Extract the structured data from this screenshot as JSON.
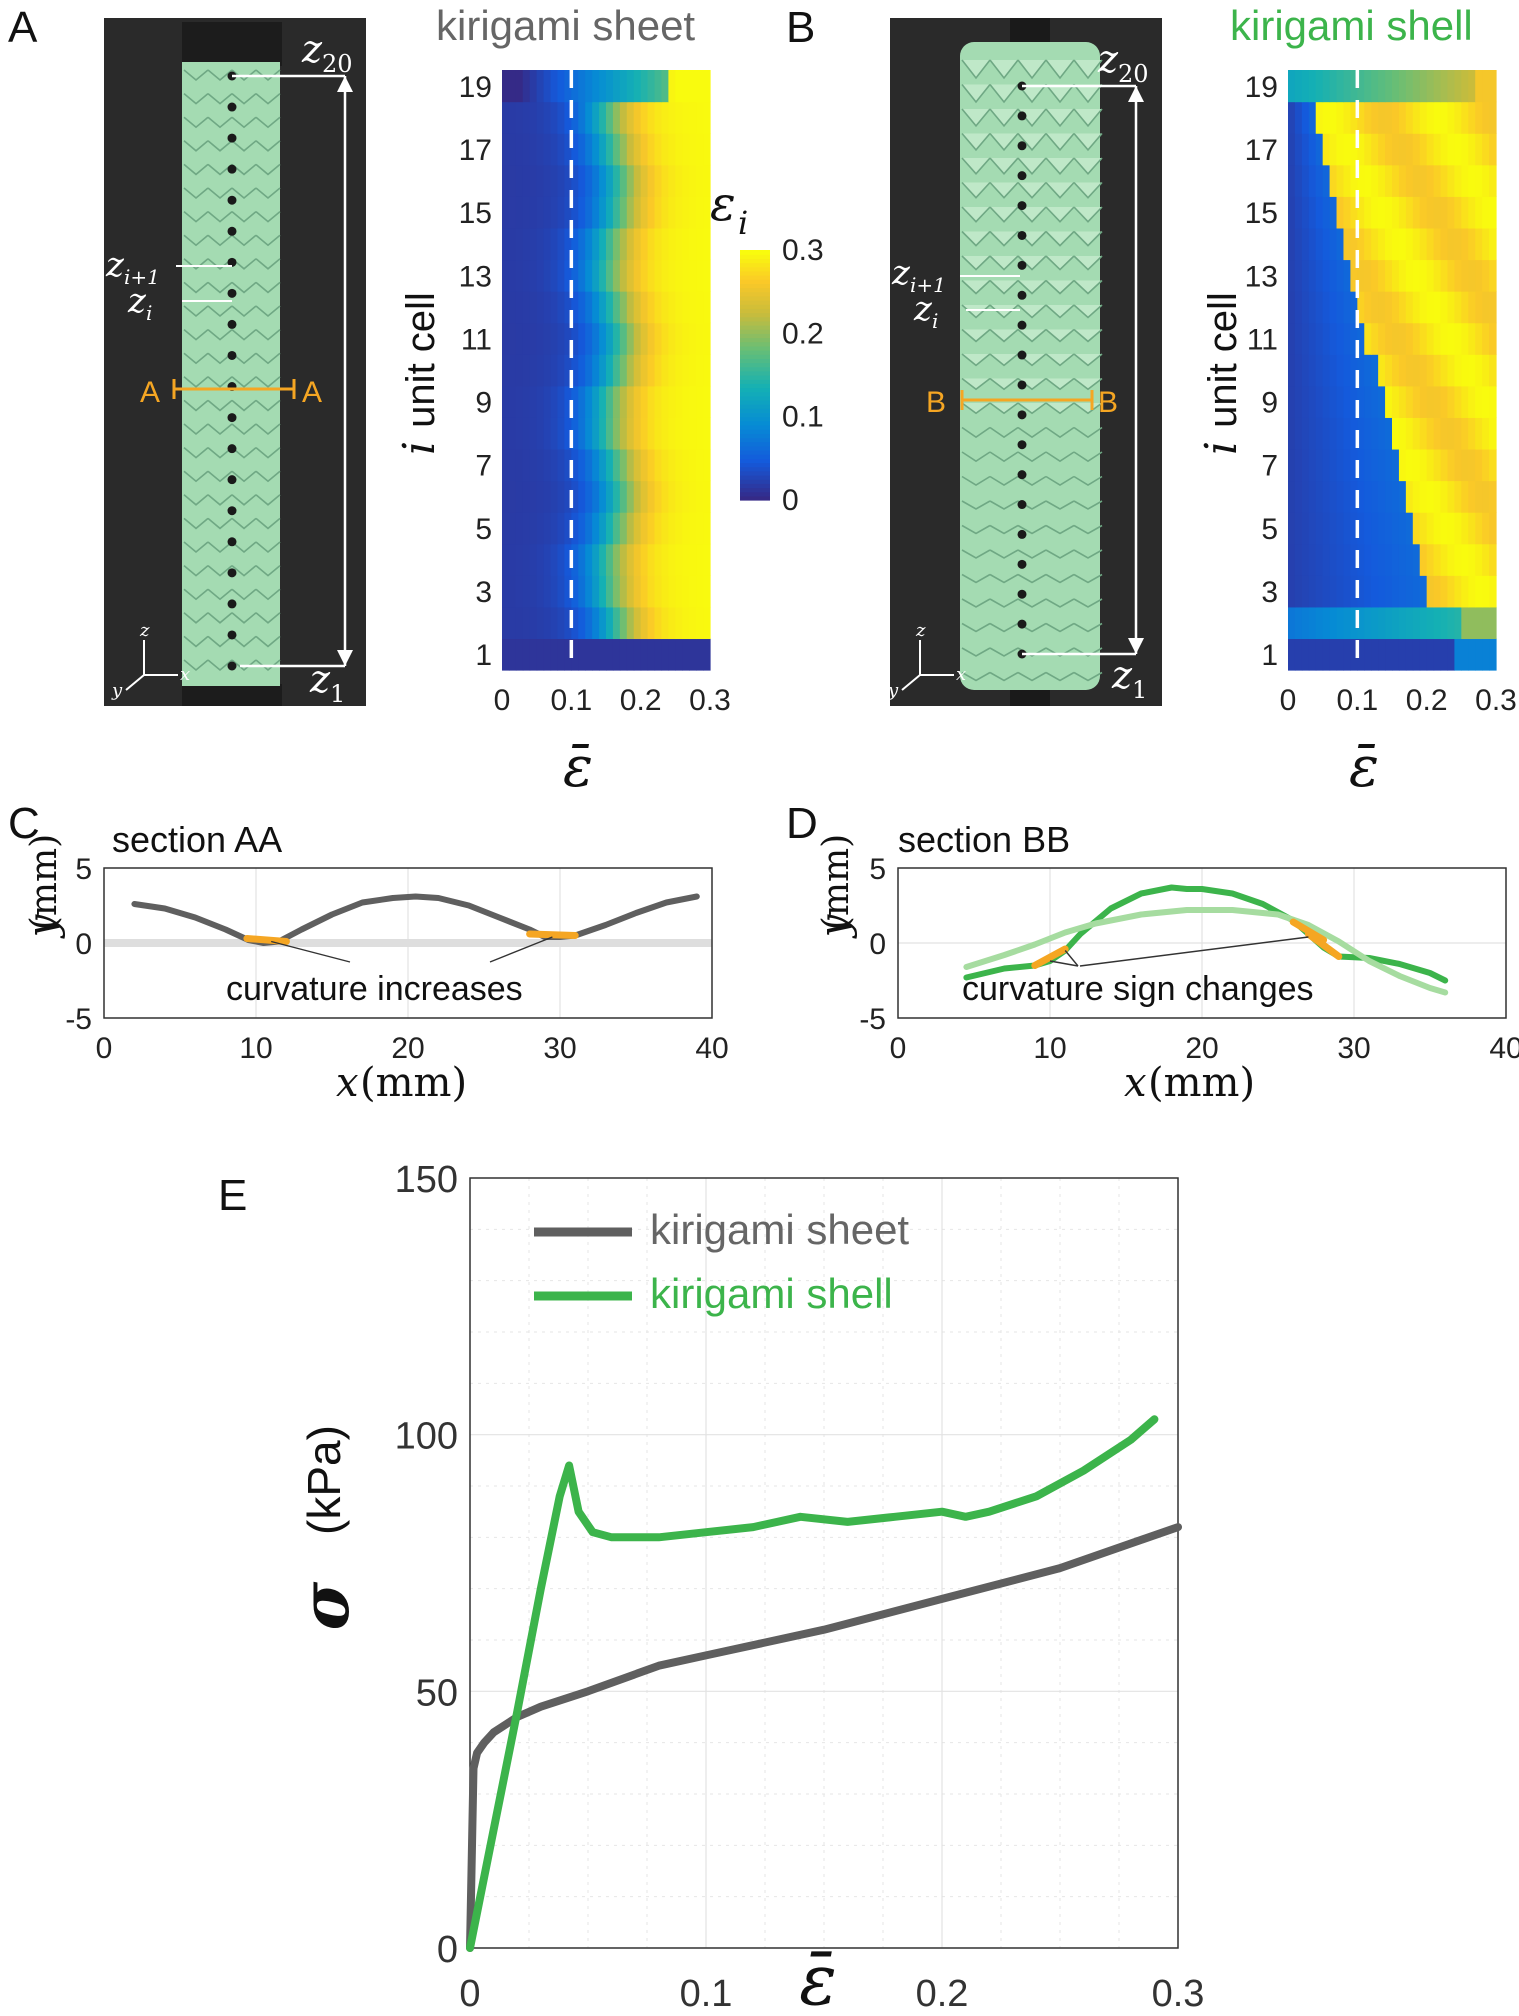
{
  "panels": {
    "A": "A",
    "B": "B",
    "C": "C",
    "D": "D",
    "E": "E"
  },
  "colors": {
    "sheet": "#5f5f5f",
    "shell": "#3cb44b",
    "shell_light": "#a6dca0",
    "highlight": "#f5a623",
    "photo_bg": "#2a2a2a",
    "photo_green": "#a4dbb2"
  },
  "photo_labels": {
    "z20": "z",
    "z20_sub": "20",
    "z1": "z",
    "z1_sub": "1",
    "zi1": "z",
    "zi1_sub": "i+1",
    "zi": "z",
    "zi_sub": "i",
    "sec_a_left": "A",
    "sec_a_right": "A",
    "sec_b_left": "B",
    "sec_b_right": "B",
    "axis_z": "z",
    "axis_x": "x",
    "axis_y": "y"
  },
  "heatmaps": {
    "sheet": {
      "title": "kirigami sheet",
      "ylabel": "unit cell",
      "ylabel_var": "i",
      "xlabel": "ε̄",
      "yticks": [
        "1",
        "3",
        "5",
        "7",
        "9",
        "11",
        "13",
        "15",
        "17",
        "19"
      ],
      "xticks": [
        "0",
        "0.1",
        "0.2",
        "0.3"
      ],
      "dashed_at": 0.1
    },
    "shell": {
      "title": "kirigami shell",
      "ylabel": "unit cell",
      "ylabel_var": "i",
      "xlabel": "ε̄",
      "yticks": [
        "1",
        "3",
        "5",
        "7",
        "9",
        "11",
        "13",
        "15",
        "17",
        "19"
      ],
      "xticks": [
        "0",
        "0.1",
        "0.2",
        "0.3"
      ],
      "dashed_at": 0.1
    },
    "colorbar": {
      "label": "ε",
      "label_sub": "i",
      "ticks": [
        "0",
        "0.1",
        "0.2",
        "0.3"
      ]
    }
  },
  "chart_data": [
    {
      "type": "line",
      "title": "section AA",
      "xlabel": "x",
      "xunit": "(mm)",
      "ylabel": "y",
      "yunit": "(mm)",
      "xlim": [
        0,
        40
      ],
      "ylim": [
        -5,
        5
      ],
      "xticks": [
        "0",
        "10",
        "20",
        "30",
        "40"
      ],
      "yticks": [
        "5",
        "0",
        "-5"
      ],
      "annotation": "curvature increases",
      "series": [
        {
          "x": [
            2,
            4,
            6,
            8,
            9.5,
            10.5,
            11.5,
            13,
            15,
            17,
            19,
            20.5,
            22,
            24,
            26,
            28,
            29,
            30,
            31,
            33,
            35,
            37,
            39
          ],
          "y": [
            2.6,
            2.3,
            1.7,
            0.9,
            0.2,
            0,
            0.1,
            0.9,
            1.9,
            2.7,
            3.0,
            3.1,
            3.0,
            2.5,
            1.7,
            0.9,
            0.4,
            0.4,
            0.5,
            1.2,
            2.0,
            2.7,
            3.1
          ]
        }
      ]
    },
    {
      "type": "line",
      "title": "section BB",
      "xlabel": "x",
      "xunit": "(mm)",
      "ylabel": "y",
      "yunit": "(mm)",
      "xlim": [
        0,
        40
      ],
      "ylim": [
        -5,
        5
      ],
      "xticks": [
        "0",
        "10",
        "20",
        "30",
        "40"
      ],
      "yticks": [
        "5",
        "0",
        "-5"
      ],
      "annotation": "curvature sign changes",
      "series": [
        {
          "x": [
            4.5,
            7,
            9,
            10,
            11,
            12,
            14,
            16,
            18,
            19,
            20,
            22,
            24,
            26,
            27,
            28,
            29,
            31,
            33,
            35,
            36
          ],
          "y": [
            -2.3,
            -1.7,
            -1.5,
            -1.2,
            -0.5,
            0.6,
            2.3,
            3.3,
            3.7,
            3.6,
            3.6,
            3.3,
            2.6,
            1.5,
            0.6,
            -0.3,
            -0.9,
            -1.0,
            -1.4,
            -2.0,
            -2.5
          ]
        },
        {
          "x": [
            4.5,
            7,
            9,
            11,
            13,
            16,
            19,
            22,
            25,
            27,
            29,
            31,
            33,
            35,
            36
          ],
          "y": [
            -1.6,
            -0.8,
            -0.1,
            0.7,
            1.3,
            1.9,
            2.2,
            2.2,
            1.9,
            1.2,
            0.1,
            -1.2,
            -2.2,
            -3.0,
            -3.3
          ]
        }
      ]
    },
    {
      "type": "line",
      "xlabel": "ε̄",
      "ylabel": "σ",
      "yunit": "(kPa)",
      "xlim": [
        0,
        0.3
      ],
      "ylim": [
        0,
        150
      ],
      "xticks": [
        "0",
        "0.1",
        "0.2",
        "0.3"
      ],
      "yticks": [
        "0",
        "50",
        "100",
        "150"
      ],
      "legend": "top-left",
      "series": [
        {
          "name": "kirigami sheet",
          "x": [
            0,
            0.0015,
            0.003,
            0.006,
            0.01,
            0.02,
            0.03,
            0.05,
            0.08,
            0.1,
            0.15,
            0.2,
            0.25,
            0.3
          ],
          "y": [
            0,
            35,
            38,
            40,
            42,
            45,
            47,
            50,
            55,
            57,
            62,
            68,
            74,
            82
          ]
        },
        {
          "name": "kirigami shell",
          "x": [
            0,
            0.01,
            0.02,
            0.03,
            0.038,
            0.042,
            0.046,
            0.052,
            0.06,
            0.08,
            0.1,
            0.12,
            0.14,
            0.16,
            0.18,
            0.2,
            0.21,
            0.22,
            0.24,
            0.26,
            0.28,
            0.29
          ],
          "y": [
            0,
            23,
            46,
            70,
            88,
            94,
            85,
            81,
            80,
            80,
            81,
            82,
            84,
            83,
            84,
            85,
            84,
            85,
            88,
            93,
            99,
            103
          ]
        }
      ]
    }
  ]
}
